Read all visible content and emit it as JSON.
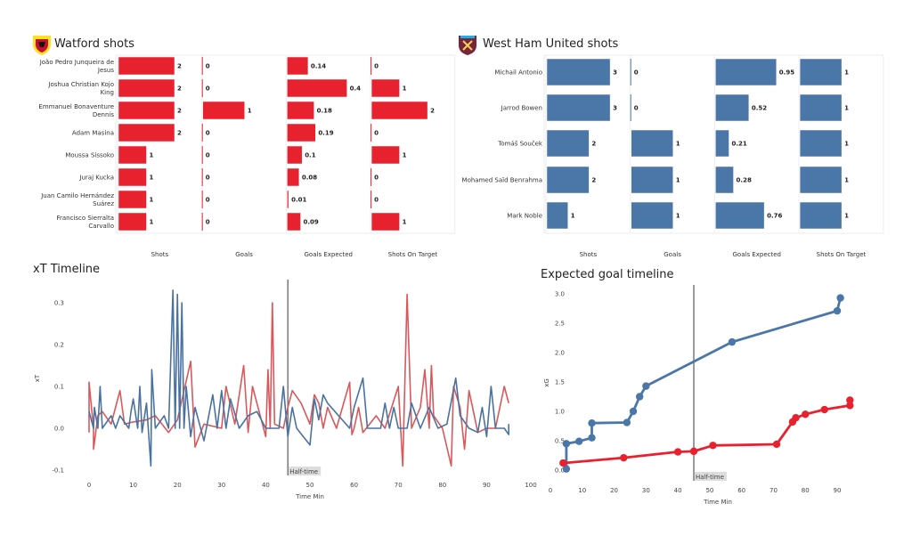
{
  "colors": {
    "watford": "#e8212e",
    "westham": "#4a76a8",
    "watford_line": "#d9585b",
    "westham_line": "#4a72a0",
    "halftime": "#666666"
  },
  "chart_data": [
    {
      "type": "bar",
      "title": "Watford shots",
      "logo": "watford-crest",
      "columns": [
        "Shots",
        "Goals",
        "Goals Expected",
        "Shots On Target"
      ],
      "players": [
        "João Pedro Junqueira de Jesus",
        "Joshua Christian Kojo King",
        "Emmanuel Bonaventure Dennis",
        "Adam Masina",
        "Moussa Sissoko",
        "Juraj Kucka",
        "Juan Camilo Hernández Suárez",
        "Francisco Sierralta Carvallo"
      ],
      "player_lines": [
        [
          "João Pedro Junqueira de",
          "Jesus"
        ],
        [
          "Joshua Christian Kojo",
          "King"
        ],
        [
          "Emmanuel Bonaventure",
          "Dennis"
        ],
        [
          "Adam Masina"
        ],
        [
          "Moussa Sissoko"
        ],
        [
          "Juraj Kucka"
        ],
        [
          "Juan Camilo Hernández",
          "Suárez"
        ],
        [
          "Francisco Sierralta",
          "Carvallo"
        ]
      ],
      "series": [
        {
          "name": "Shots",
          "values": [
            2,
            2,
            2,
            2,
            1,
            1,
            1,
            1
          ]
        },
        {
          "name": "Goals",
          "values": [
            0,
            0,
            1,
            0,
            0,
            0,
            0,
            0
          ]
        },
        {
          "name": "Goals Expected",
          "values": [
            0.14,
            0.4,
            0.18,
            0.19,
            0.1,
            0.08,
            0.01,
            0.09
          ]
        },
        {
          "name": "Shots On Target",
          "values": [
            0,
            1,
            2,
            0,
            1,
            0,
            0,
            1
          ]
        }
      ]
    },
    {
      "type": "bar",
      "title": "West Ham United shots",
      "logo": "west-ham-crest",
      "columns": [
        "Shots",
        "Goals",
        "Goals Expected",
        "Shots On Target"
      ],
      "players": [
        "Michail Antonio",
        "Jarrod Bowen",
        "Tomáš Souček",
        "Mohamed Saïd Benrahma",
        "Mark Noble"
      ],
      "player_lines": [
        [
          "Michail Antonio"
        ],
        [
          "Jarrod Bowen"
        ],
        [
          "Tomáš Souček"
        ],
        [
          "Mohamed Saïd Benrahma"
        ],
        [
          "Mark Noble"
        ]
      ],
      "series": [
        {
          "name": "Shots",
          "values": [
            3,
            3,
            2,
            2,
            1
          ]
        },
        {
          "name": "Goals",
          "values": [
            0,
            0,
            1,
            1,
            1
          ]
        },
        {
          "name": "Goals Expected",
          "values": [
            0.95,
            0.52,
            0.21,
            0.28,
            0.76
          ]
        },
        {
          "name": "Shots On Target",
          "values": [
            1,
            1,
            1,
            1,
            1
          ]
        }
      ]
    },
    {
      "type": "line",
      "title": "xT Timeline",
      "xlabel": "Time Min",
      "ylabel": "xT",
      "xlim": [
        0,
        100
      ],
      "ylim": [
        -0.1,
        0.35
      ],
      "xticks": [
        0,
        10,
        20,
        30,
        40,
        50,
        60,
        70,
        80,
        90,
        100
      ],
      "yticks": [
        -0.1,
        0.0,
        0.1,
        0.2,
        0.3
      ],
      "grid": false,
      "annotation": {
        "x": 45,
        "text": "Half-time"
      },
      "series": [
        {
          "team": "watford",
          "points": [
            [
              0,
              -0.01
            ],
            [
              0,
              0.11
            ],
            [
              1,
              0.0
            ],
            [
              1,
              -0.05
            ],
            [
              2,
              0.03
            ],
            [
              3,
              0.04
            ],
            [
              5,
              0.01
            ],
            [
              7,
              0.09
            ],
            [
              8,
              0.01
            ],
            [
              10,
              0.015
            ],
            [
              13,
              0.02
            ],
            [
              15,
              0.03
            ],
            [
              18,
              -0.01
            ],
            [
              20,
              0.02
            ],
            [
              23,
              0.16
            ],
            [
              24,
              -0.045
            ],
            [
              26,
              0.01
            ],
            [
              30,
              0.0
            ],
            [
              31,
              0.1
            ],
            [
              33,
              0.01
            ],
            [
              35,
              0.15
            ],
            [
              36,
              -0.01
            ],
            [
              37,
              0.1
            ],
            [
              40,
              -0.02
            ],
            [
              40.5,
              0.14
            ],
            [
              41,
              0.0
            ],
            [
              41.5,
              0.3
            ],
            [
              42,
              0.01
            ],
            [
              44,
              0.0
            ],
            [
              45,
              0.05
            ],
            [
              46,
              0.09
            ],
            [
              48,
              0.06
            ],
            [
              50,
              0.01
            ],
            [
              51,
              0.08
            ],
            [
              52,
              0.06
            ],
            [
              53,
              0.0
            ],
            [
              54,
              0.05
            ],
            [
              56,
              0.0
            ],
            [
              59,
              0.11
            ],
            [
              59.5,
              -0.015
            ],
            [
              60,
              0.0
            ],
            [
              61,
              0.05
            ],
            [
              62,
              -0.01
            ],
            [
              65,
              0.03
            ],
            [
              67,
              0.0
            ],
            [
              70,
              0.1
            ],
            [
              71,
              -0.09
            ],
            [
              72,
              0.32
            ],
            [
              73,
              0.0
            ],
            [
              75,
              0.05
            ],
            [
              76,
              0.14
            ],
            [
              77,
              0.0
            ],
            [
              77.5,
              0.15
            ],
            [
              78,
              0.03
            ],
            [
              80,
              0.0
            ],
            [
              82,
              -0.09
            ],
            [
              82.5,
              0.1
            ],
            [
              84,
              0.05
            ],
            [
              85,
              -0.05
            ],
            [
              86,
              0.09
            ],
            [
              88,
              -0.01
            ],
            [
              90,
              0.0
            ],
            [
              92,
              0.0
            ],
            [
              94,
              0.1
            ],
            [
              95,
              0.06
            ]
          ]
        },
        {
          "team": "westham",
          "points": [
            [
              0,
              0.04
            ],
            [
              1,
              0.0
            ],
            [
              1.2,
              0.05
            ],
            [
              2,
              0.0
            ],
            [
              2.5,
              0.1
            ],
            [
              3,
              0.0
            ],
            [
              5,
              0.03
            ],
            [
              6,
              0.0
            ],
            [
              7,
              0.03
            ],
            [
              9,
              0.0
            ],
            [
              9.5,
              0.04
            ],
            [
              10,
              0.07
            ],
            [
              11,
              0.0
            ],
            [
              11.5,
              0.1
            ],
            [
              12,
              -0.01
            ],
            [
              13,
              0.06
            ],
            [
              14,
              -0.09
            ],
            [
              14.2,
              0.14
            ],
            [
              15,
              0.0
            ],
            [
              17,
              0.03
            ],
            [
              18,
              0.0
            ],
            [
              19,
              0.33
            ],
            [
              19.5,
              0.0
            ],
            [
              20,
              0.32
            ],
            [
              20.5,
              0.0
            ],
            [
              21,
              0.3
            ],
            [
              21.5,
              0.0
            ],
            [
              22,
              0.1
            ],
            [
              23,
              -0.02
            ],
            [
              24,
              0.05
            ],
            [
              26,
              -0.03
            ],
            [
              28,
              0.08
            ],
            [
              29,
              0.0
            ],
            [
              30,
              0.09
            ],
            [
              31,
              0.0
            ],
            [
              32,
              0.07
            ],
            [
              34,
              0.0
            ],
            [
              36,
              0.03
            ],
            [
              38,
              0.04
            ],
            [
              40,
              0.0
            ],
            [
              43,
              0.0
            ],
            [
              44,
              0.1
            ],
            [
              45,
              -0.02
            ],
            [
              46,
              0.05
            ],
            [
              47,
              0.0
            ],
            [
              50,
              -0.04
            ],
            [
              51,
              0.07
            ],
            [
              52,
              0.02
            ],
            [
              53,
              0.08
            ],
            [
              54,
              0.06
            ],
            [
              59,
              0.0
            ],
            [
              60,
              0.05
            ],
            [
              62,
              0.12
            ],
            [
              63,
              0.0
            ],
            [
              66,
              0.0
            ],
            [
              67,
              0.06
            ],
            [
              68,
              0.0
            ],
            [
              69,
              0.05
            ],
            [
              70,
              0.0
            ],
            [
              72,
              0.0
            ],
            [
              73,
              0.06
            ],
            [
              75,
              0.0
            ],
            [
              77,
              0.05
            ],
            [
              79,
              0.0
            ],
            [
              81,
              0.01
            ],
            [
              83,
              0.12
            ],
            [
              84,
              0.03
            ],
            [
              86,
              0.0
            ],
            [
              88,
              -0.01
            ],
            [
              89,
              0.05
            ],
            [
              90,
              -0.02
            ],
            [
              91,
              0.1
            ],
            [
              92,
              0.0
            ],
            [
              94,
              0.0
            ],
            [
              95,
              -0.015
            ],
            [
              95,
              0.01
            ]
          ]
        }
      ]
    },
    {
      "type": "line",
      "title": "Expected goal timeline",
      "xlabel": "Time Min",
      "ylabel": "xG",
      "xlim": [
        0,
        95
      ],
      "ylim": [
        0,
        3.0
      ],
      "xticks": [
        0,
        10,
        20,
        30,
        40,
        50,
        60,
        70,
        80,
        90
      ],
      "yticks": [
        0.0,
        0.5,
        1.0,
        1.5,
        2.0,
        2.5,
        3.0
      ],
      "grid": false,
      "annotation": {
        "x": 45,
        "text": "Half-time"
      },
      "series": [
        {
          "team": "westham",
          "points": [
            [
              5,
              0.02
            ],
            [
              5,
              0.45
            ],
            [
              9,
              0.49
            ],
            [
              13,
              0.55
            ],
            [
              13,
              0.8
            ],
            [
              24,
              0.81
            ],
            [
              26,
              1.0
            ],
            [
              28,
              1.25
            ],
            [
              30,
              1.43
            ],
            [
              57,
              2.18
            ],
            [
              90,
              2.71
            ],
            [
              91,
              2.93
            ]
          ]
        },
        {
          "team": "watford",
          "points": [
            [
              4,
              0.12
            ],
            [
              23,
              0.21
            ],
            [
              40,
              0.31
            ],
            [
              45,
              0.32
            ],
            [
              51,
              0.42
            ],
            [
              71,
              0.44
            ],
            [
              76,
              0.82
            ],
            [
              77,
              0.89
            ],
            [
              80,
              0.95
            ],
            [
              86,
              1.03
            ],
            [
              94,
              1.1
            ],
            [
              94,
              1.19
            ]
          ]
        }
      ]
    }
  ]
}
